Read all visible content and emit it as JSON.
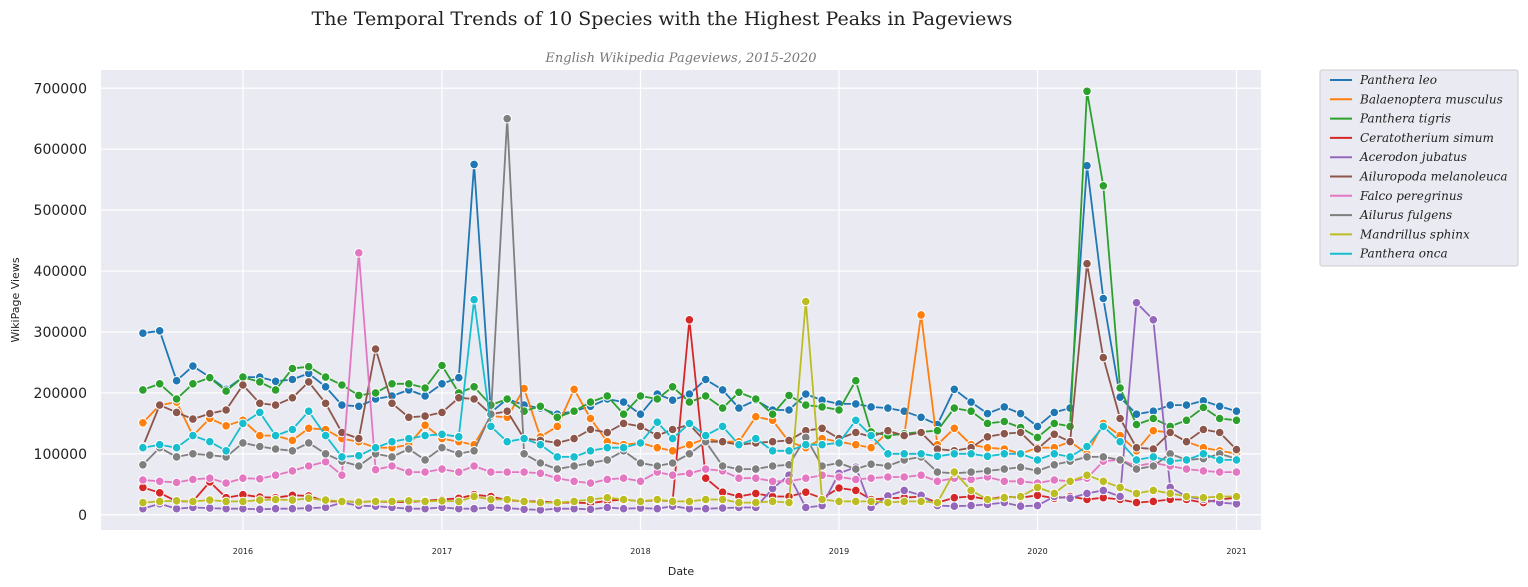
{
  "chart_data": {
    "type": "line",
    "title": "The Temporal Trends of 10 Species with the Highest Peaks in Pageviews",
    "subtitle": "English Wikipedia Pageviews, 2015-2020",
    "xlabel": "Date",
    "ylabel": "WikiPage Views",
    "x_tick_labels": [
      "2016",
      "2017",
      "2018",
      "2019",
      "2020",
      "2021"
    ],
    "y_ticks": [
      0,
      100000,
      200000,
      300000,
      400000,
      500000,
      600000,
      700000
    ],
    "y_tick_labels": [
      "0",
      "100000",
      "200000",
      "300000",
      "400000",
      "500000",
      "600000",
      "700000"
    ],
    "ylim": [
      -25000,
      730000
    ],
    "xlim": [
      "2015-04-15",
      "2021-02-15"
    ],
    "x_start": "2015-07",
    "grid": true,
    "legend_position": "outside-top-right",
    "series": [
      {
        "name": "Panthera leo",
        "color": "#1f77b4",
        "values": [
          298000,
          302000,
          220000,
          244000,
          226000,
          206000,
          226000,
          226000,
          219000,
          222000,
          232000,
          210000,
          180000,
          178000,
          190000,
          195000,
          205000,
          195000,
          215000,
          225000,
          575000,
          168000,
          190000,
          180000,
          175000,
          165000,
          170000,
          178000,
          190000,
          185000,
          165000,
          198000,
          188000,
          198000,
          222000,
          205000,
          175000,
          188000,
          172000,
          172000,
          198000,
          188000,
          182000,
          182000,
          177000,
          175000,
          170000,
          160000,
          148000,
          206000,
          185000,
          166000,
          177000,
          166000,
          145000,
          168000,
          175000,
          573000,
          355000,
          193000,
          165000,
          170000,
          180000,
          180000,
          187000,
          178000,
          170000
        ]
      },
      {
        "name": "Balaenoptera musculus",
        "color": "#ff7f0e",
        "values": [
          151000,
          180000,
          185000,
          130000,
          158000,
          146000,
          155000,
          130000,
          130000,
          122000,
          142000,
          140000,
          125000,
          120000,
          110000,
          110000,
          115000,
          147000,
          125000,
          120000,
          115000,
          162000,
          160000,
          207000,
          128000,
          145000,
          206000,
          158000,
          120000,
          115000,
          118000,
          110000,
          105000,
          115000,
          125000,
          120000,
          120000,
          161000,
          155000,
          120000,
          110000,
          125000,
          120000,
          115000,
          110000,
          135000,
          130000,
          328000,
          115000,
          142000,
          115000,
          110000,
          108000,
          100000,
          110000,
          110000,
          120000,
          100000,
          150000,
          130000,
          105000,
          138000,
          135000,
          120000,
          110000,
          105000,
          100000
        ]
      },
      {
        "name": "Panthera tigris",
        "color": "#2ca02c",
        "values": [
          205000,
          215000,
          190000,
          215000,
          225000,
          203000,
          226000,
          218000,
          205000,
          240000,
          243000,
          226000,
          213000,
          196000,
          200000,
          215000,
          215000,
          208000,
          245000,
          200000,
          210000,
          180000,
          190000,
          170000,
          178000,
          160000,
          170000,
          185000,
          195000,
          165000,
          195000,
          190000,
          210000,
          185000,
          195000,
          175000,
          201000,
          190000,
          165000,
          196000,
          180000,
          177000,
          172000,
          220000,
          136000,
          130000,
          133000,
          136000,
          138000,
          175000,
          170000,
          150000,
          153000,
          143000,
          127000,
          150000,
          145000,
          695000,
          540000,
          208000,
          148000,
          158000,
          145000,
          155000,
          176000,
          158000,
          155000
        ]
      },
      {
        "name": "Ceratotherium simum",
        "color": "#d62728",
        "values": [
          45000,
          36000,
          22000,
          22000,
          54000,
          28000,
          33000,
          29000,
          28000,
          32000,
          31000,
          22000,
          22000,
          21000,
          22000,
          21000,
          21000,
          23000,
          25000,
          27000,
          33000,
          30000,
          24000,
          22000,
          22000,
          20000,
          20000,
          19000,
          23000,
          25000,
          22000,
          24000,
          22000,
          320000,
          60000,
          37000,
          30000,
          35000,
          30000,
          30000,
          37000,
          27000,
          44000,
          40000,
          25000,
          27000,
          28000,
          30000,
          20000,
          28000,
          30000,
          25000,
          30000,
          28000,
          32000,
          27000,
          30000,
          25000,
          28000,
          25000,
          20000,
          22000,
          25000,
          25000,
          20000,
          25000,
          28000
        ]
      },
      {
        "name": "Acerodon jubatus",
        "color": "#9467bd",
        "values": [
          10000,
          18000,
          10000,
          12000,
          11000,
          10000,
          10000,
          9000,
          10000,
          10000,
          11000,
          12000,
          20000,
          15000,
          14000,
          12000,
          10000,
          10000,
          12000,
          10000,
          10000,
          12000,
          11000,
          9000,
          8000,
          10000,
          10000,
          9000,
          12000,
          10000,
          11000,
          10000,
          14000,
          10000,
          10000,
          11000,
          12000,
          12000,
          43000,
          65000,
          12000,
          15000,
          68000,
          78000,
          12000,
          31000,
          40000,
          32000,
          15000,
          14000,
          15000,
          17000,
          20000,
          14000,
          15000,
          30000,
          27000,
          35000,
          40000,
          30000,
          348000,
          320000,
          45000,
          30000,
          25000,
          20000,
          18000
        ]
      },
      {
        "name": "Ailuropoda melanoleuca",
        "color": "#8c564b",
        "values": [
          112000,
          180000,
          168000,
          157000,
          166000,
          172000,
          213000,
          183000,
          180000,
          192000,
          218000,
          183000,
          135000,
          125000,
          272000,
          183000,
          160000,
          162000,
          168000,
          192000,
          190000,
          165000,
          170000,
          125000,
          122000,
          118000,
          125000,
          140000,
          135000,
          150000,
          145000,
          130000,
          140000,
          148000,
          120000,
          120000,
          115000,
          118000,
          120000,
          122000,
          138000,
          142000,
          125000,
          135000,
          128000,
          138000,
          130000,
          135000,
          108000,
          105000,
          110000,
          128000,
          133000,
          135000,
          108000,
          132000,
          120000,
          412000,
          258000,
          158000,
          110000,
          108000,
          135000,
          120000,
          140000,
          135000,
          107000
        ]
      },
      {
        "name": "Falco peregrinus",
        "color": "#e377c2",
        "values": [
          57000,
          55000,
          53000,
          58000,
          60000,
          52000,
          60000,
          59000,
          65000,
          72000,
          80000,
          87000,
          65000,
          430000,
          74000,
          80000,
          70000,
          70000,
          75000,
          70000,
          80000,
          70000,
          70000,
          70000,
          68000,
          60000,
          55000,
          52000,
          58000,
          60000,
          55000,
          70000,
          65000,
          68000,
          75000,
          72000,
          60000,
          60000,
          55000,
          55000,
          60000,
          65000,
          62000,
          58000,
          60000,
          62000,
          62000,
          65000,
          55000,
          60000,
          58000,
          62000,
          55000,
          55000,
          52000,
          57000,
          55000,
          60000,
          88000,
          90000,
          80000,
          85000,
          80000,
          75000,
          72000,
          70000,
          70000
        ]
      },
      {
        "name": "Ailurus fulgens",
        "color": "#7f7f7f",
        "values": [
          82000,
          110000,
          95000,
          100000,
          98000,
          95000,
          118000,
          112000,
          108000,
          105000,
          118000,
          100000,
          88000,
          80000,
          100000,
          95000,
          108000,
          90000,
          110000,
          100000,
          105000,
          165000,
          650000,
          100000,
          85000,
          75000,
          80000,
          85000,
          90000,
          105000,
          85000,
          80000,
          85000,
          100000,
          120000,
          80000,
          75000,
          75000,
          80000,
          82000,
          127000,
          80000,
          85000,
          75000,
          83000,
          80000,
          90000,
          95000,
          70000,
          68000,
          70000,
          72000,
          75000,
          78000,
          72000,
          82000,
          88000,
          95000,
          95000,
          90000,
          75000,
          80000,
          100000,
          90000,
          92000,
          100000,
          92000
        ]
      },
      {
        "name": "Mandrillus sphinx",
        "color": "#bcbd22",
        "values": [
          20000,
          22000,
          23000,
          22000,
          24000,
          22000,
          22000,
          24000,
          25000,
          24000,
          27000,
          24000,
          22000,
          21000,
          22000,
          22000,
          23000,
          22000,
          23000,
          22000,
          30000,
          25000,
          25000,
          22000,
          20000,
          20000,
          22000,
          25000,
          28000,
          25000,
          22000,
          25000,
          22000,
          22000,
          25000,
          25000,
          20000,
          20000,
          22000,
          20000,
          350000,
          25000,
          22000,
          22000,
          22000,
          20000,
          22000,
          22000,
          20000,
          70000,
          40000,
          25000,
          28000,
          30000,
          45000,
          35000,
          55000,
          65000,
          55000,
          45000,
          35000,
          40000,
          35000,
          30000,
          28000,
          30000,
          30000
        ]
      },
      {
        "name": "Panthera onca",
        "color": "#17becf",
        "values": [
          110000,
          115000,
          110000,
          130000,
          120000,
          105000,
          150000,
          168000,
          130000,
          140000,
          170000,
          130000,
          95000,
          97000,
          110000,
          120000,
          125000,
          130000,
          132000,
          128000,
          353000,
          145000,
          120000,
          125000,
          115000,
          95000,
          95000,
          105000,
          110000,
          110000,
          118000,
          152000,
          125000,
          150000,
          130000,
          145000,
          115000,
          125000,
          105000,
          105000,
          115000,
          115000,
          118000,
          155000,
          130000,
          100000,
          100000,
          100000,
          96000,
          100000,
          100000,
          96000,
          100000,
          100000,
          90000,
          100000,
          95000,
          112000,
          145000,
          120000,
          90000,
          95000,
          88000,
          90000,
          100000,
          90000,
          90000
        ]
      }
    ]
  }
}
